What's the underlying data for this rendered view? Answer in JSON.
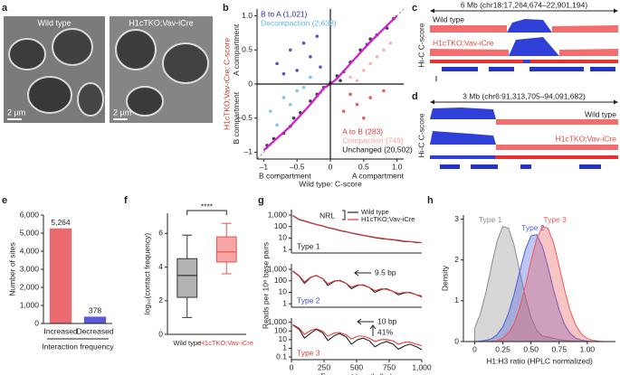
{
  "panel_labels": [
    "a",
    "b",
    "c",
    "d",
    "e",
    "f",
    "g",
    "h"
  ],
  "micrographs": {
    "labels": [
      "Wild type",
      "H1cTKO;Vav-iCre"
    ],
    "scale_bars": [
      "2 µm",
      "2 µm"
    ]
  },
  "tracks": [
    {
      "span": "6 Mb (chr18:17,264,674–22,901,194)",
      "axis_label": "Hi-C C-score",
      "series": [
        "Wild type",
        "H1cTKO;Vav-iCre"
      ]
    },
    {
      "span": "3 Mb (chr6:91,313,705–94,091,682)",
      "axis_label": "Hi-C C-score",
      "series": [
        "Wild type",
        "H1cTKO;Vav-iCre"
      ]
    }
  ],
  "chart_data": [
    {
      "type": "scatter",
      "xlabel": "Wild type: C-score",
      "ylabel": "H1cTKO;Vav-iCre: C-score",
      "x_region_labels": [
        "B compartment",
        "A compartment"
      ],
      "y_region_labels": [
        "B compartment",
        "A compartment"
      ],
      "xlim": [
        -1.1,
        1.1
      ],
      "ylim": [
        -1.1,
        1.1
      ],
      "xticks": [
        {
          "value": -1,
          "label": "–1"
        },
        {
          "value": -0.5,
          "label": "–0.5"
        },
        0,
        0.5,
        {
          "value": 1,
          "label": "1.0"
        }
      ],
      "yticks": [
        {
          "value": -1,
          "label": "–1"
        },
        {
          "value": -0.5,
          "label": "–0.5"
        },
        0,
        0.5,
        {
          "value": 1,
          "label": "1.0"
        }
      ],
      "series": [
        {
          "name": "B to A (1,021)",
          "color": "#2b2bb0",
          "x": [
            -0.8,
            -0.6,
            -0.4,
            -0.2,
            -0.5,
            -0.3,
            -0.7,
            -0.15
          ],
          "values": [
            0.3,
            0.5,
            0.6,
            0.7,
            0.2,
            0.4,
            0.15,
            0.25
          ]
        },
        {
          "name": "Decompaction (2,638)",
          "color": "#5fb6e8",
          "x": [
            -0.9,
            -0.7,
            -0.5,
            -0.3,
            -0.6,
            -0.8,
            -0.4
          ],
          "values": [
            -0.4,
            -0.2,
            -0.1,
            0.1,
            -0.3,
            -0.6,
            -0.05
          ]
        },
        {
          "name": "A to B (283)",
          "color": "#d83a3a",
          "x": [
            0.2,
            0.4,
            0.6,
            0.8,
            0.5,
            0.3
          ],
          "values": [
            -0.4,
            -0.3,
            -0.2,
            -0.1,
            -0.5,
            -0.15
          ]
        },
        {
          "name": "Compaction (749)",
          "color": "#f3a3a0",
          "x": [
            0.3,
            0.5,
            0.7,
            0.9,
            0.6,
            0.8,
            0.4
          ],
          "values": [
            0.1,
            0.2,
            0.4,
            0.6,
            0.3,
            0.5,
            0.05
          ]
        },
        {
          "name": "Unchanged (20,502)",
          "color": "#111111",
          "x": [
            -0.95,
            -0.85,
            -0.7,
            -0.55,
            -0.45,
            -0.3,
            -0.2,
            -0.1,
            0.0,
            0.1,
            0.2,
            0.3,
            0.45,
            0.55,
            0.7,
            0.85,
            0.95,
            -0.6,
            0.6,
            0.15
          ],
          "values": [
            -0.9,
            -0.8,
            -0.72,
            -0.5,
            -0.42,
            -0.25,
            -0.15,
            -0.05,
            0.02,
            0.12,
            0.18,
            0.32,
            0.5,
            0.58,
            0.72,
            0.82,
            0.96,
            -0.62,
            0.66,
            0.05
          ]
        }
      ],
      "fit": {
        "color": "#d11fcf",
        "x": [
          -1,
          -0.6,
          -0.3,
          -0.1,
          0,
          0.1,
          0.3,
          0.6,
          1
        ],
        "values": [
          -0.97,
          -0.62,
          -0.3,
          -0.06,
          0,
          0.08,
          0.3,
          0.62,
          1.0
        ]
      }
    },
    {
      "type": "bar",
      "ylabel": "Number of sites",
      "xlabel": "Interaction frequency",
      "categories": [
        "Increased",
        "Decreased"
      ],
      "values": [
        5264,
        378
      ],
      "value_labels": [
        "5,264",
        "378"
      ],
      "colors": [
        "#ea6a6f",
        "#5a5ad8"
      ],
      "ylim": [
        0,
        6000
      ],
      "yticks": [
        0,
        {
          "value": 1000,
          "label": "1,000"
        },
        {
          "value": 2000,
          "label": "2,000"
        },
        {
          "value": 3000,
          "label": "3,000"
        },
        {
          "value": 4000,
          "label": "4,000"
        },
        {
          "value": 5000,
          "label": "5,000"
        },
        {
          "value": 6000,
          "label": "6,000"
        }
      ]
    },
    {
      "type": "box",
      "ylabel": "log₁₀(contact frequency)",
      "categories": [
        "Wild type",
        "H1cTKO;Vav-iCre"
      ],
      "colors": [
        "#b3b3b3",
        "#f7a5a5"
      ],
      "category_colors": [
        "#222222",
        "#e23b3b"
      ],
      "boxes": [
        {
          "min": 1.0,
          "q1": 2.2,
          "median": 3.5,
          "q3": 4.5,
          "max": 5.9
        },
        {
          "min": 3.6,
          "q1": 4.3,
          "median": 4.9,
          "q3": 5.8,
          "max": 6.6
        }
      ],
      "ylim": [
        0,
        7.2
      ],
      "yticks": [
        0,
        2,
        4,
        6
      ],
      "annotation": "****"
    },
    {
      "type": "line",
      "label": "Type 1",
      "label_color": "#222222",
      "ylog": true,
      "ylim": [
        0.5,
        3000
      ],
      "xlim": [
        0,
        1000
      ],
      "yticks": [
        1,
        10,
        100,
        {
          "value": 1000,
          "label": "1,000"
        }
      ],
      "legend": "upper right",
      "annotations": [
        "NRL"
      ],
      "x": [
        10,
        60,
        100,
        150,
        190,
        240,
        280,
        330,
        370,
        420,
        460,
        510,
        550,
        600,
        640,
        690,
        730,
        780,
        820,
        870,
        910,
        960,
        1000
      ],
      "series": [
        {
          "name": "Wild type",
          "color": "#222222",
          "values": [
            900,
            400,
            300,
            200,
            150,
            110,
            80,
            60,
            45,
            35,
            27,
            21,
            17,
            13,
            11,
            9,
            8,
            7,
            6,
            5,
            5,
            4,
            4
          ]
        },
        {
          "name": "H1cTKO;Vav-iCre",
          "color": "#e23b3b",
          "values": [
            950,
            430,
            320,
            215,
            160,
            118,
            86,
            64,
            48,
            37,
            29,
            22,
            18,
            14,
            12,
            10,
            8.5,
            7.5,
            6.5,
            5.5,
            5,
            4.5,
            4
          ]
        }
      ]
    },
    {
      "type": "line",
      "label": "Type 2",
      "label_color": "#3a4fd8",
      "ylog": true,
      "ylim": [
        0.5,
        3000
      ],
      "xlim": [
        0,
        1000
      ],
      "ylabel": "Reads per 10⁶ base pairs",
      "yticks": [
        1,
        10,
        100,
        {
          "value": 1000,
          "label": "1,000"
        }
      ],
      "annotations": [
        "9.5 bp"
      ],
      "x": [
        10,
        60,
        100,
        150,
        190,
        240,
        280,
        330,
        370,
        420,
        460,
        510,
        550,
        600,
        640,
        690,
        730,
        780,
        820,
        870,
        910,
        960,
        1000
      ],
      "series": [
        {
          "color": "#222222",
          "values": [
            700,
            250,
            60,
            200,
            300,
            150,
            40,
            90,
            110,
            60,
            20,
            40,
            45,
            25,
            10,
            18,
            20,
            12,
            6,
            9,
            10,
            6,
            4
          ]
        },
        {
          "color": "#e23b3b",
          "values": [
            750,
            280,
            80,
            220,
            280,
            160,
            55,
            100,
            100,
            60,
            28,
            45,
            40,
            26,
            14,
            20,
            18,
            12,
            8,
            10,
            9,
            6,
            5
          ]
        }
      ]
    },
    {
      "type": "line",
      "label": "Type 3",
      "label_color": "#e23b3b",
      "ylog": true,
      "ylim": [
        0.05,
        3000
      ],
      "xlim": [
        0,
        1000
      ],
      "xlabel": "Fragment length (bp)",
      "xticks": [
        0,
        250,
        500,
        750,
        {
          "value": 1000,
          "label": "1,000"
        }
      ],
      "yticks": [
        0.1,
        1,
        10,
        100,
        {
          "value": 1000,
          "label": "1,000"
        }
      ],
      "annotations": [
        "10 bp",
        "41%"
      ],
      "x": [
        10,
        60,
        100,
        150,
        190,
        240,
        280,
        330,
        370,
        420,
        460,
        510,
        550,
        600,
        640,
        690,
        730,
        780,
        820,
        870,
        910,
        960,
        1000
      ],
      "series": [
        {
          "color": "#222222",
          "values": [
            500,
            150,
            15,
            60,
            150,
            60,
            8,
            30,
            50,
            20,
            3,
            10,
            15,
            7,
            1.5,
            4,
            6,
            3,
            0.8,
            2,
            3,
            1.5,
            0.7
          ]
        },
        {
          "color": "#e23b3b",
          "values": [
            550,
            200,
            40,
            120,
            180,
            90,
            25,
            60,
            65,
            35,
            12,
            25,
            25,
            14,
            6,
            10,
            10,
            7,
            3,
            5,
            5,
            3,
            2
          ]
        }
      ]
    },
    {
      "type": "area",
      "xlabel": "H1:H3 ratio (HPLC normalized)",
      "ylabel": "Density",
      "xlim": [
        -0.1,
        1.25
      ],
      "ylim": [
        0,
        3.1
      ],
      "xticks": [
        0,
        {
          "value": 0.25,
          "label": "0.25"
        },
        {
          "value": 0.5,
          "label": "0.50"
        },
        {
          "value": 0.75,
          "label": "0.75"
        },
        {
          "value": 1,
          "label": "1.00"
        }
      ],
      "yticks": [
        0,
        1,
        2,
        3
      ],
      "x": [
        0,
        0.05,
        0.1,
        0.15,
        0.2,
        0.25,
        0.3,
        0.35,
        0.4,
        0.45,
        0.5,
        0.55,
        0.6,
        0.65,
        0.7,
        0.75,
        0.8,
        0.85,
        0.9,
        0.95,
        1.0,
        1.05,
        1.1,
        1.15,
        1.2,
        1.25
      ],
      "series": [
        {
          "name": "Type 1",
          "color": "#8c8c8c",
          "values": [
            0.33,
            0.68,
            1.21,
            1.86,
            2.47,
            2.82,
            2.78,
            2.36,
            1.73,
            1.09,
            0.6,
            0.28,
            0.14,
            0.11,
            0.08,
            0.05,
            0.03,
            0.02,
            0.01,
            0,
            0,
            0,
            0,
            0,
            0,
            0
          ]
        },
        {
          "name": "Type 2",
          "color": "#4a5de0",
          "values": [
            0,
            0.01,
            0.03,
            0.07,
            0.17,
            0.36,
            0.69,
            1.16,
            1.72,
            2.25,
            2.59,
            2.62,
            2.34,
            1.84,
            1.27,
            0.77,
            0.41,
            0.19,
            0.08,
            0.03,
            0.01,
            0,
            0,
            0,
            0,
            0
          ]
        },
        {
          "name": "Type 3",
          "color": "#ec5a5a",
          "values": [
            0,
            0,
            0,
            0.01,
            0.02,
            0.09,
            0.21,
            0.44,
            0.83,
            1.36,
            1.98,
            2.51,
            2.82,
            2.78,
            2.42,
            1.85,
            1.25,
            0.74,
            0.39,
            0.18,
            0.07,
            0.03,
            0.01,
            0,
            0,
            0
          ]
        }
      ]
    }
  ]
}
